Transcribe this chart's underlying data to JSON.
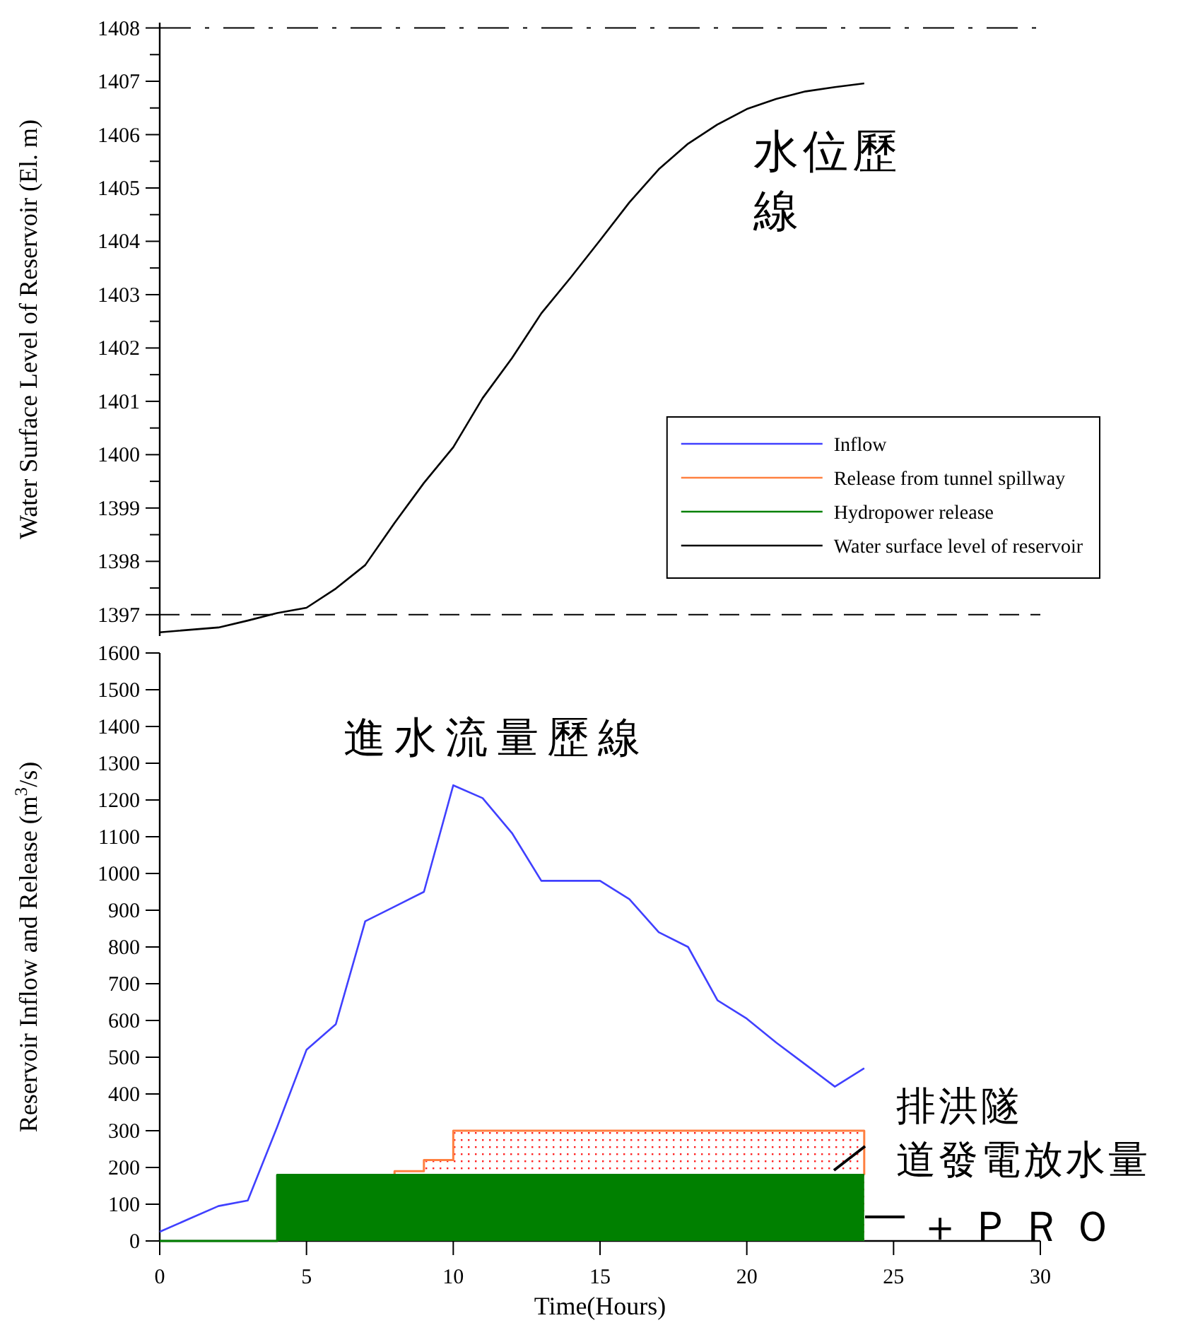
{
  "chart_data": [
    {
      "type": "line",
      "ylabel": "Water Surface Level of Reservoir (El. m)",
      "xlim": [
        0,
        30
      ],
      "ylim": [
        1396.6,
        1408.1
      ],
      "tick_labels": "y",
      "legend": "bottom right",
      "yticks": [
        1397,
        {
          "value": 1397.5,
          "label": null
        },
        1398,
        {
          "value": 1398.5,
          "label": null
        },
        1399,
        {
          "value": 1399.5,
          "label": null
        },
        1400,
        {
          "value": 1400.5,
          "label": null
        },
        1401,
        {
          "value": 1401.5,
          "label": null
        },
        1402,
        {
          "value": 1402.5,
          "label": null
        },
        1403,
        {
          "value": 1403.5,
          "label": null
        },
        1404,
        {
          "value": 1404.5,
          "label": null
        },
        1405,
        {
          "value": 1405.5,
          "label": null
        },
        1406,
        {
          "value": 1406.5,
          "label": null
        },
        1407,
        {
          "value": 1407.5,
          "label": null
        },
        1408
      ],
      "series": [
        {
          "name": "Water surface level of reservoir",
          "color": "#000000",
          "x": [
            0,
            2,
            3,
            4,
            5,
            6,
            7,
            8,
            9,
            10,
            11,
            12,
            13,
            14,
            15,
            16,
            17,
            18,
            19,
            20,
            21,
            22,
            23,
            24
          ],
          "values": [
            1396.67,
            1396.76,
            1396.89,
            1397.03,
            1397.13,
            1397.49,
            1397.93,
            1398.72,
            1399.47,
            1400.14,
            1401.06,
            1401.81,
            1402.65,
            1403.32,
            1404.02,
            1404.73,
            1405.35,
            1405.83,
            1406.19,
            1406.48,
            1406.67,
            1406.81,
            1406.89,
            1406.96
          ]
        }
      ],
      "ref_lines": [
        {
          "axis": "y",
          "value": 1408,
          "line_style": "dashdot",
          "color": "#000000"
        },
        {
          "axis": "y",
          "value": 1397,
          "line_style": "dashed",
          "color": "#000000"
        }
      ],
      "annotations": [
        "水位歷線"
      ]
    },
    {
      "type": "line",
      "xlabel": "Time(Hours)",
      "ylabel": "Reservoir Inflow and Release (m$^{3}$/s)",
      "xlim": [
        0,
        30
      ],
      "xticks": [
        0,
        5,
        10,
        15,
        20,
        25,
        30
      ],
      "ylim": [
        0,
        1600
      ],
      "yticks": [
        0,
        100,
        200,
        300,
        400,
        500,
        600,
        700,
        800,
        900,
        1000,
        1100,
        1200,
        1300,
        1400,
        1500,
        1600
      ],
      "legend": false,
      "series": [
        {
          "name": "Inflow",
          "color": "#4040ff",
          "x": [
            0,
            1,
            2,
            3,
            4,
            5,
            6,
            7,
            8,
            9,
            10,
            11,
            12,
            13,
            14,
            15,
            16,
            17,
            18,
            19,
            20,
            21,
            22,
            23,
            24
          ],
          "values": [
            25,
            60,
            95,
            110,
            310,
            520,
            590,
            870,
            910,
            950,
            1240,
            1205,
            1110,
            980,
            980,
            980,
            930,
            840,
            800,
            655,
            605,
            540,
            480,
            420,
            470
          ]
        },
        {
          "name": "Release from tunnel spillway",
          "type": "area",
          "color": "#ff8040",
          "x": [
            8,
            8,
            9,
            9,
            10,
            10,
            24,
            24
          ],
          "values": [
            180,
            190,
            190,
            220,
            220,
            300,
            300,
            180
          ]
        },
        {
          "name": "Hydropower release",
          "type": "area",
          "color": "#008000",
          "x": [
            0,
            4,
            4,
            24
          ],
          "values": [
            0,
            0,
            180,
            180
          ]
        }
      ],
      "annotations": [
        "進水流量歷線",
        "排洪隧道發電放水量",
        "＋ＰＲＯ"
      ]
    }
  ]
}
